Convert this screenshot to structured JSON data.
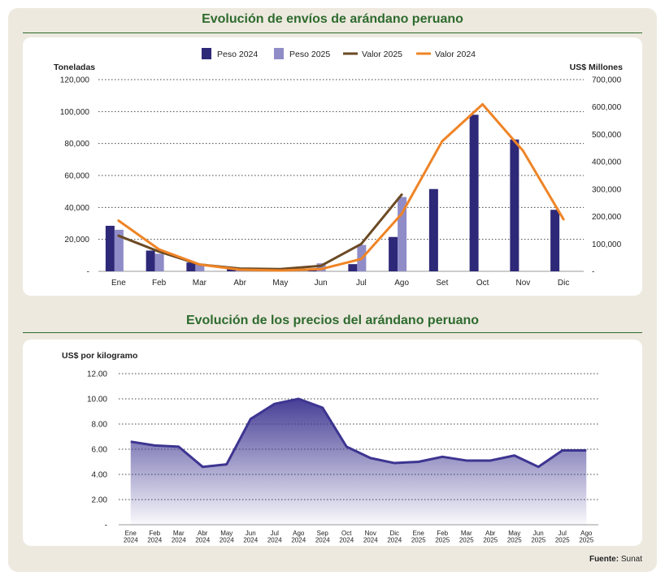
{
  "source": {
    "label": "Fuente:",
    "value": "Sunat"
  },
  "chart_data": [
    {
      "type": "bar",
      "title": "Evolución de envíos de arándano peruano",
      "ylabel": "Toneladas",
      "y2label": "US$ Millones",
      "ylim": [
        0,
        120000
      ],
      "y2lim": [
        0,
        700000
      ],
      "yticks": [
        "-",
        "20,000",
        "40,000",
        "60,000",
        "80,000",
        "100,000",
        "120,000"
      ],
      "y2ticks": [
        "-",
        "100,000",
        "200,000",
        "300,000",
        "400,000",
        "500,000",
        "600,000",
        "700,000"
      ],
      "grid": true,
      "legend_position": "top",
      "categories": [
        "Ene",
        "Feb",
        "Mar",
        "Abr",
        "May",
        "Jun",
        "Jul",
        "Ago",
        "Set",
        "Oct",
        "Nov",
        "Dic"
      ],
      "series": [
        {
          "name": "Peso 2024",
          "kind": "bar",
          "axis": "left",
          "color": "#2e2878",
          "values": [
            28500,
            13000,
            5500,
            1500,
            700,
            1500,
            4500,
            21500,
            51500,
            98000,
            82500,
            38500
          ]
        },
        {
          "name": "Peso 2025",
          "kind": "bar",
          "axis": "left",
          "color": "#8f8cc8",
          "values": [
            26000,
            11000,
            4500,
            1500,
            800,
            5000,
            16500,
            46500,
            null,
            null,
            null,
            null
          ]
        },
        {
          "name": "Valor 2025",
          "kind": "line",
          "axis": "right",
          "color": "#6b4a24",
          "values": [
            130000,
            72000,
            25000,
            10000,
            8000,
            20000,
            100000,
            280000,
            null,
            null,
            null,
            null
          ]
        },
        {
          "name": "Valor 2024",
          "kind": "line",
          "axis": "right",
          "color": "#ef8426",
          "values": [
            185000,
            80000,
            25000,
            6000,
            3000,
            8000,
            45000,
            210000,
            475000,
            610000,
            440000,
            190000
          ]
        }
      ]
    },
    {
      "type": "area",
      "title": "Evolución de los precios del arándano peruano",
      "ylabel": "US$ por kilogramo",
      "ylim": [
        0,
        12
      ],
      "yticks": [
        "-",
        "2.00",
        "4.00",
        "6.00",
        "8.00",
        "10.00",
        "12.00"
      ],
      "grid": true,
      "color": "#3d3591",
      "x": [
        {
          "m": "Ene",
          "y": "2024"
        },
        {
          "m": "Feb",
          "y": "2024"
        },
        {
          "m": "Mar",
          "y": "2024"
        },
        {
          "m": "Abr",
          "y": "2024"
        },
        {
          "m": "May",
          "y": "2024"
        },
        {
          "m": "Jun",
          "y": "2024"
        },
        {
          "m": "Jul",
          "y": "2024"
        },
        {
          "m": "Ago",
          "y": "2024"
        },
        {
          "m": "Sep",
          "y": "2024"
        },
        {
          "m": "Oct",
          "y": "2024"
        },
        {
          "m": "Nov",
          "y": "2024"
        },
        {
          "m": "Dic",
          "y": "2024"
        },
        {
          "m": "Ene",
          "y": "2025"
        },
        {
          "m": "Feb",
          "y": "2025"
        },
        {
          "m": "Mar",
          "y": "2025"
        },
        {
          "m": "Abr",
          "y": "2025"
        },
        {
          "m": "May",
          "y": "2025"
        },
        {
          "m": "Jun",
          "y": "2025"
        },
        {
          "m": "Jul",
          "y": "2025"
        },
        {
          "m": "Ago",
          "y": "2025"
        }
      ],
      "values": [
        6.6,
        6.3,
        6.2,
        4.6,
        4.8,
        8.4,
        9.6,
        10.0,
        9.3,
        6.2,
        5.3,
        4.9,
        5.0,
        5.4,
        5.1,
        5.1,
        5.5,
        4.6,
        5.9,
        5.9
      ]
    }
  ]
}
